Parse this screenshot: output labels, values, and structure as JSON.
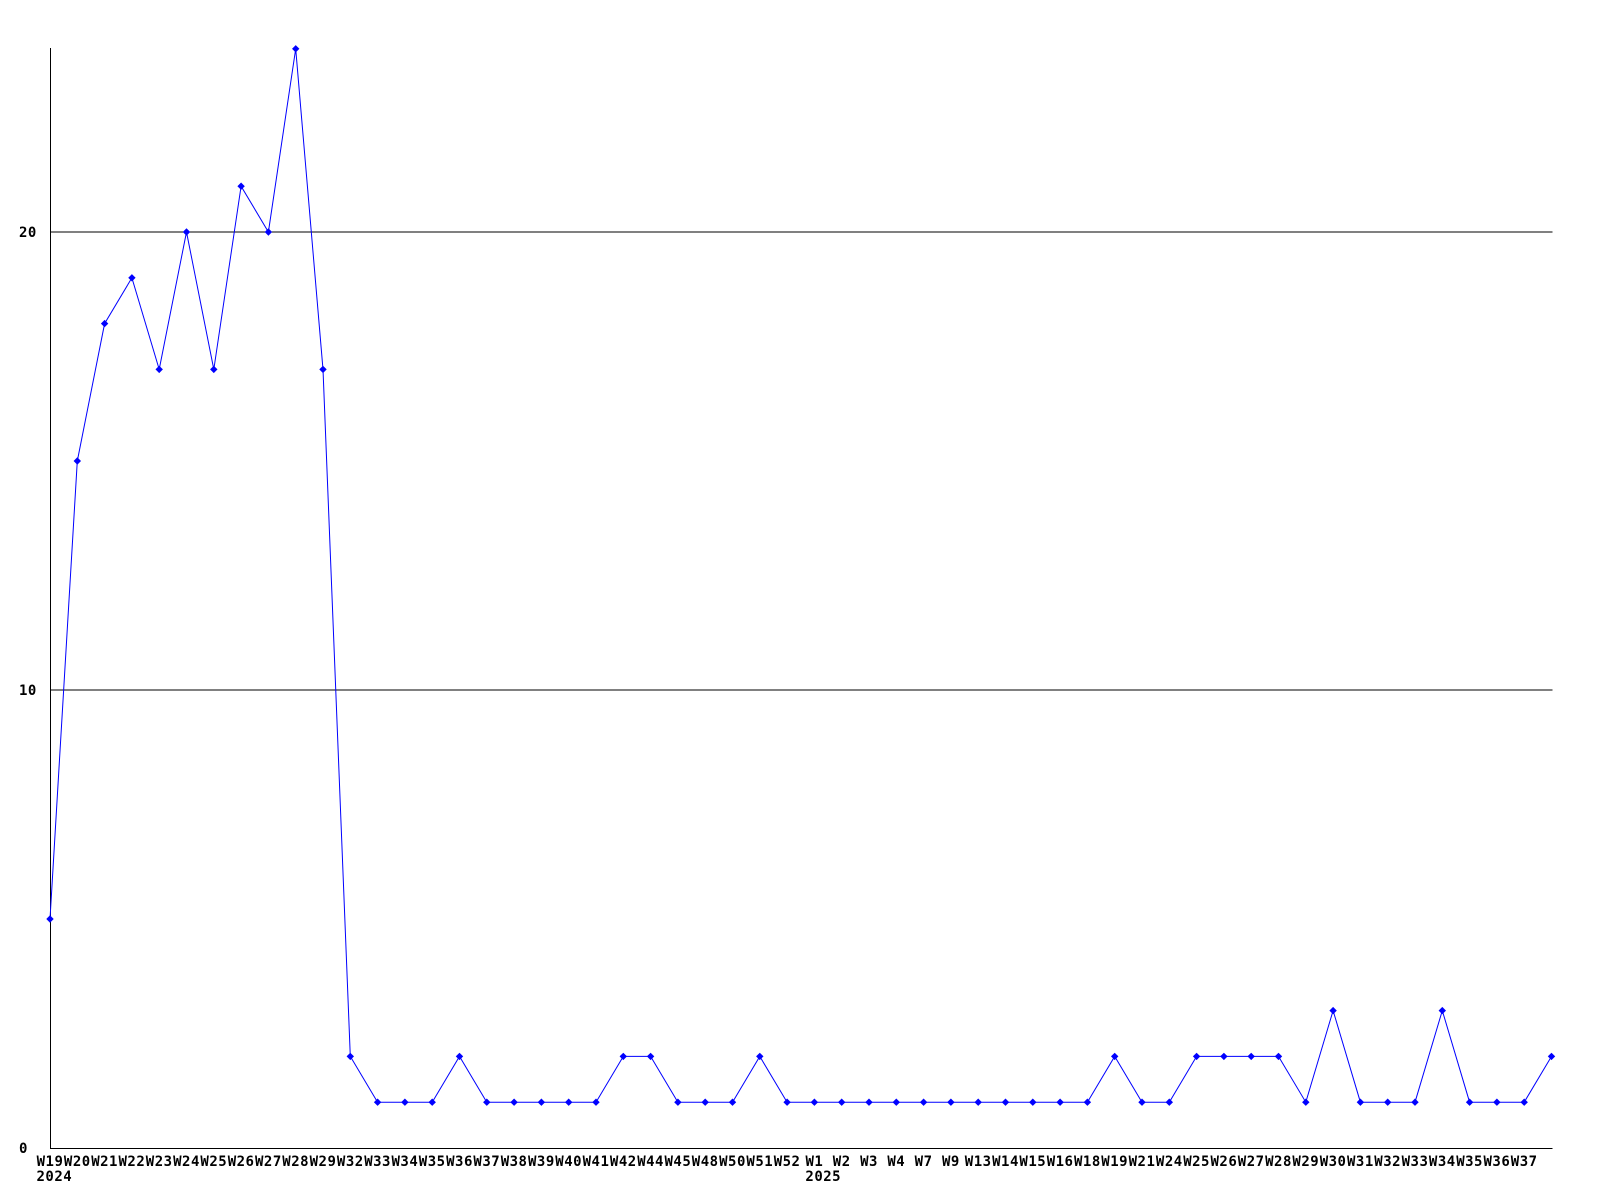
{
  "chart_data": {
    "type": "line",
    "title": "",
    "xlabel": "",
    "ylabel": "",
    "y_ticks": [
      0,
      10,
      20
    ],
    "grid_values": [
      10,
      20
    ],
    "ylim": [
      0,
      24.5
    ],
    "line_color": "#0000ff",
    "axis_color": "#000000",
    "text_color": "#000000",
    "background_color": "#ffffff",
    "x_labels": [
      "W19",
      "W20",
      "W21",
      "W22",
      "W23",
      "W24",
      "W25",
      "W26",
      "W27",
      "W28",
      "W29",
      "W32",
      "W33",
      "W34",
      "W35",
      "W36",
      "W37",
      "W38",
      "W39",
      "W40",
      "W41",
      "W42",
      "W44",
      "W45",
      "W48",
      "W50",
      "W51",
      "W52",
      "W1",
      "W2",
      "W3",
      "W4",
      "W7",
      "W9",
      "W13",
      "W14",
      "W15",
      "W16",
      "W18",
      "W19",
      "W21",
      "W24",
      "W25",
      "W26",
      "W27",
      "W28",
      "W29",
      "W30",
      "W31",
      "W32",
      "W33",
      "W34",
      "W35",
      "W36",
      "W37",
      ""
    ],
    "year_markers": [
      {
        "index": 0,
        "label": "2024"
      },
      {
        "index": 28,
        "label": "2025"
      }
    ],
    "series": [
      {
        "name": "",
        "values": [
          5,
          15,
          18,
          19,
          17,
          20,
          17,
          21,
          20,
          24,
          17,
          2,
          1,
          1,
          1,
          2,
          1,
          1,
          1,
          1,
          1,
          2,
          2,
          1,
          1,
          1,
          2,
          1,
          1,
          1,
          1,
          1,
          1,
          1,
          1,
          1,
          1,
          1,
          1,
          2,
          1,
          1,
          2,
          2,
          2,
          2,
          1,
          3,
          1,
          1,
          1,
          3,
          1,
          1,
          1,
          2
        ]
      }
    ]
  }
}
